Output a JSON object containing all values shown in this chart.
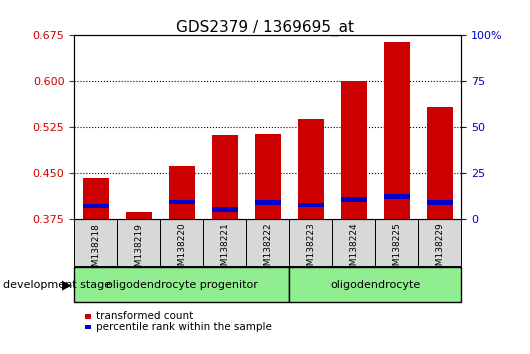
{
  "title": "GDS2379 / 1369695_at",
  "samples": [
    "GSM138218",
    "GSM138219",
    "GSM138220",
    "GSM138221",
    "GSM138222",
    "GSM138223",
    "GSM138224",
    "GSM138225",
    "GSM138229"
  ],
  "red_values": [
    0.442,
    0.388,
    0.462,
    0.513,
    0.515,
    0.538,
    0.601,
    0.665,
    0.558
  ],
  "blue_heights": [
    0.006,
    0.005,
    0.006,
    0.007,
    0.008,
    0.007,
    0.008,
    0.008,
    0.008
  ],
  "blue_bottoms": [
    0.394,
    0.368,
    0.4,
    0.388,
    0.398,
    0.395,
    0.403,
    0.408,
    0.398
  ],
  "ymin": 0.375,
  "ymax": 0.675,
  "yticks": [
    0.375,
    0.45,
    0.525,
    0.6,
    0.675
  ],
  "right_yticks": [
    0,
    25,
    50,
    75,
    100
  ],
  "group_labels": [
    "oligodendrocyte progenitor",
    "oligodendrocyte"
  ],
  "group_sizes": [
    5,
    4
  ],
  "group_color": "#90ee90",
  "bar_color_red": "#cc0000",
  "bar_color_blue": "#0000cc",
  "bar_width": 0.6,
  "stage_label": "development stage",
  "legend_red": "transformed count",
  "legend_blue": "percentile rank within the sample",
  "background_color": "#ffffff",
  "tick_label_color_left": "#cc0000",
  "tick_label_color_right": "#0000cc"
}
